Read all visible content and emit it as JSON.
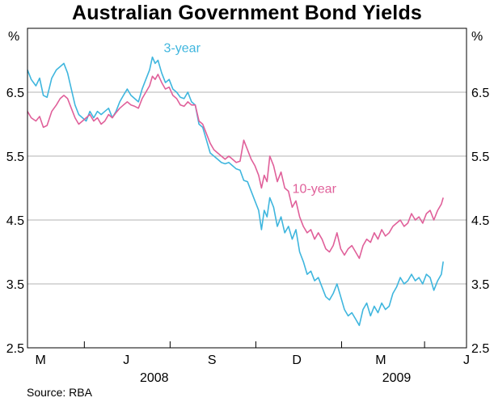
{
  "chart_data": {
    "type": "line",
    "title": "Australian Government Bond Yields",
    "y_unit_left": "%",
    "y_unit_right": "%",
    "ylim": [
      2.5,
      7.5
    ],
    "y_ticks": [
      2.5,
      3.5,
      4.5,
      5.5,
      6.5
    ],
    "grid": true,
    "xlim": [
      "2008-03-01",
      "2009-06-15"
    ],
    "month_ticks": [
      {
        "label": "M",
        "date": "2008-03-15"
      },
      {
        "label": "J",
        "date": "2008-06-15"
      },
      {
        "label": "S",
        "date": "2008-09-15"
      },
      {
        "label": "D",
        "date": "2008-12-15"
      },
      {
        "label": "M",
        "date": "2009-03-15"
      },
      {
        "label": "J",
        "date": "2009-06-15"
      }
    ],
    "year_labels": [
      {
        "label": "2008",
        "date": "2008-07-15"
      },
      {
        "label": "2009",
        "date": "2009-04-01"
      }
    ],
    "series": [
      {
        "name": "3-year",
        "color": "#3fb6de",
        "points": [
          [
            "2008-03-01",
            6.85
          ],
          [
            "2008-03-05",
            6.7
          ],
          [
            "2008-03-10",
            6.6
          ],
          [
            "2008-03-14",
            6.72
          ],
          [
            "2008-03-18",
            6.45
          ],
          [
            "2008-03-22",
            6.42
          ],
          [
            "2008-03-27",
            6.72
          ],
          [
            "2008-04-01",
            6.85
          ],
          [
            "2008-04-05",
            6.9
          ],
          [
            "2008-04-09",
            6.95
          ],
          [
            "2008-04-13",
            6.8
          ],
          [
            "2008-04-17",
            6.55
          ],
          [
            "2008-04-21",
            6.3
          ],
          [
            "2008-04-25",
            6.15
          ],
          [
            "2008-04-29",
            6.1
          ],
          [
            "2008-05-03",
            6.05
          ],
          [
            "2008-05-07",
            6.2
          ],
          [
            "2008-05-11",
            6.1
          ],
          [
            "2008-05-15",
            6.2
          ],
          [
            "2008-05-19",
            6.15
          ],
          [
            "2008-05-23",
            6.2
          ],
          [
            "2008-05-27",
            6.25
          ],
          [
            "2008-05-31",
            6.1
          ],
          [
            "2008-06-04",
            6.2
          ],
          [
            "2008-06-08",
            6.35
          ],
          [
            "2008-06-12",
            6.45
          ],
          [
            "2008-06-16",
            6.55
          ],
          [
            "2008-06-20",
            6.45
          ],
          [
            "2008-06-24",
            6.4
          ],
          [
            "2008-06-28",
            6.35
          ],
          [
            "2008-07-02",
            6.55
          ],
          [
            "2008-07-06",
            6.7
          ],
          [
            "2008-07-10",
            6.85
          ],
          [
            "2008-07-13",
            7.05
          ],
          [
            "2008-07-16",
            6.95
          ],
          [
            "2008-07-19",
            7.0
          ],
          [
            "2008-07-23",
            6.8
          ],
          [
            "2008-07-27",
            6.65
          ],
          [
            "2008-07-31",
            6.7
          ],
          [
            "2008-08-04",
            6.55
          ],
          [
            "2008-08-08",
            6.5
          ],
          [
            "2008-08-12",
            6.42
          ],
          [
            "2008-08-16",
            6.4
          ],
          [
            "2008-08-20",
            6.5
          ],
          [
            "2008-08-24",
            6.35
          ],
          [
            "2008-08-28",
            6.3
          ],
          [
            "2008-09-01",
            6.0
          ],
          [
            "2008-09-05",
            5.95
          ],
          [
            "2008-09-09",
            5.75
          ],
          [
            "2008-09-13",
            5.55
          ],
          [
            "2008-09-17",
            5.5
          ],
          [
            "2008-09-21",
            5.45
          ],
          [
            "2008-09-25",
            5.4
          ],
          [
            "2008-09-29",
            5.38
          ],
          [
            "2008-10-03",
            5.4
          ],
          [
            "2008-10-07",
            5.35
          ],
          [
            "2008-10-11",
            5.3
          ],
          [
            "2008-10-15",
            5.28
          ],
          [
            "2008-10-19",
            5.12
          ],
          [
            "2008-10-23",
            5.1
          ],
          [
            "2008-10-27",
            4.95
          ],
          [
            "2008-10-31",
            4.8
          ],
          [
            "2008-11-04",
            4.65
          ],
          [
            "2008-11-07",
            4.35
          ],
          [
            "2008-11-10",
            4.65
          ],
          [
            "2008-11-13",
            4.55
          ],
          [
            "2008-11-16",
            4.85
          ],
          [
            "2008-11-20",
            4.7
          ],
          [
            "2008-11-24",
            4.4
          ],
          [
            "2008-11-28",
            4.55
          ],
          [
            "2008-12-02",
            4.3
          ],
          [
            "2008-12-06",
            4.4
          ],
          [
            "2008-12-10",
            4.2
          ],
          [
            "2008-12-14",
            4.35
          ],
          [
            "2008-12-18",
            4.0
          ],
          [
            "2008-12-22",
            3.85
          ],
          [
            "2008-12-26",
            3.65
          ],
          [
            "2008-12-30",
            3.7
          ],
          [
            "2009-01-03",
            3.55
          ],
          [
            "2009-01-07",
            3.6
          ],
          [
            "2009-01-11",
            3.45
          ],
          [
            "2009-01-15",
            3.3
          ],
          [
            "2009-01-19",
            3.25
          ],
          [
            "2009-01-23",
            3.35
          ],
          [
            "2009-01-27",
            3.5
          ],
          [
            "2009-01-31",
            3.3
          ],
          [
            "2009-02-04",
            3.1
          ],
          [
            "2009-02-08",
            3.0
          ],
          [
            "2009-02-12",
            3.05
          ],
          [
            "2009-02-16",
            2.95
          ],
          [
            "2009-02-20",
            2.85
          ],
          [
            "2009-02-24",
            3.1
          ],
          [
            "2009-02-28",
            3.2
          ],
          [
            "2009-03-04",
            3.0
          ],
          [
            "2009-03-08",
            3.15
          ],
          [
            "2009-03-12",
            3.05
          ],
          [
            "2009-03-16",
            3.2
          ],
          [
            "2009-03-20",
            3.1
          ],
          [
            "2009-03-24",
            3.15
          ],
          [
            "2009-03-28",
            3.35
          ],
          [
            "2009-04-01",
            3.45
          ],
          [
            "2009-04-05",
            3.6
          ],
          [
            "2009-04-09",
            3.5
          ],
          [
            "2009-04-13",
            3.55
          ],
          [
            "2009-04-17",
            3.65
          ],
          [
            "2009-04-21",
            3.55
          ],
          [
            "2009-04-25",
            3.6
          ],
          [
            "2009-04-29",
            3.5
          ],
          [
            "2009-05-03",
            3.65
          ],
          [
            "2009-05-07",
            3.6
          ],
          [
            "2009-05-11",
            3.4
          ],
          [
            "2009-05-15",
            3.55
          ],
          [
            "2009-05-19",
            3.65
          ],
          [
            "2009-05-21",
            3.85
          ]
        ]
      },
      {
        "name": "10-year",
        "color": "#e0609a",
        "points": [
          [
            "2008-03-01",
            6.2
          ],
          [
            "2008-03-05",
            6.1
          ],
          [
            "2008-03-10",
            6.05
          ],
          [
            "2008-03-14",
            6.12
          ],
          [
            "2008-03-18",
            5.95
          ],
          [
            "2008-03-22",
            5.98
          ],
          [
            "2008-03-27",
            6.2
          ],
          [
            "2008-04-01",
            6.3
          ],
          [
            "2008-04-05",
            6.4
          ],
          [
            "2008-04-09",
            6.45
          ],
          [
            "2008-04-13",
            6.4
          ],
          [
            "2008-04-17",
            6.25
          ],
          [
            "2008-04-21",
            6.1
          ],
          [
            "2008-04-25",
            6.0
          ],
          [
            "2008-04-29",
            6.05
          ],
          [
            "2008-05-03",
            6.1
          ],
          [
            "2008-05-07",
            6.15
          ],
          [
            "2008-05-11",
            6.05
          ],
          [
            "2008-05-15",
            6.1
          ],
          [
            "2008-05-19",
            6.0
          ],
          [
            "2008-05-23",
            6.05
          ],
          [
            "2008-05-27",
            6.15
          ],
          [
            "2008-05-31",
            6.1
          ],
          [
            "2008-06-04",
            6.18
          ],
          [
            "2008-06-08",
            6.25
          ],
          [
            "2008-06-12",
            6.3
          ],
          [
            "2008-06-16",
            6.35
          ],
          [
            "2008-06-20",
            6.3
          ],
          [
            "2008-06-24",
            6.28
          ],
          [
            "2008-06-28",
            6.25
          ],
          [
            "2008-07-02",
            6.4
          ],
          [
            "2008-07-06",
            6.5
          ],
          [
            "2008-07-10",
            6.6
          ],
          [
            "2008-07-13",
            6.75
          ],
          [
            "2008-07-16",
            6.7
          ],
          [
            "2008-07-19",
            6.78
          ],
          [
            "2008-07-23",
            6.65
          ],
          [
            "2008-07-27",
            6.55
          ],
          [
            "2008-07-31",
            6.58
          ],
          [
            "2008-08-04",
            6.45
          ],
          [
            "2008-08-08",
            6.4
          ],
          [
            "2008-08-12",
            6.3
          ],
          [
            "2008-08-16",
            6.28
          ],
          [
            "2008-08-20",
            6.35
          ],
          [
            "2008-08-24",
            6.3
          ],
          [
            "2008-08-28",
            6.3
          ],
          [
            "2008-09-01",
            6.05
          ],
          [
            "2008-09-05",
            6.0
          ],
          [
            "2008-09-09",
            5.85
          ],
          [
            "2008-09-13",
            5.7
          ],
          [
            "2008-09-17",
            5.6
          ],
          [
            "2008-09-21",
            5.55
          ],
          [
            "2008-09-25",
            5.5
          ],
          [
            "2008-09-29",
            5.45
          ],
          [
            "2008-10-03",
            5.5
          ],
          [
            "2008-10-07",
            5.45
          ],
          [
            "2008-10-11",
            5.4
          ],
          [
            "2008-10-15",
            5.42
          ],
          [
            "2008-10-19",
            5.75
          ],
          [
            "2008-10-23",
            5.6
          ],
          [
            "2008-10-27",
            5.45
          ],
          [
            "2008-10-31",
            5.35
          ],
          [
            "2008-11-04",
            5.2
          ],
          [
            "2008-11-07",
            5.0
          ],
          [
            "2008-11-10",
            5.2
          ],
          [
            "2008-11-13",
            5.1
          ],
          [
            "2008-11-16",
            5.5
          ],
          [
            "2008-11-20",
            5.35
          ],
          [
            "2008-11-24",
            5.1
          ],
          [
            "2008-11-28",
            5.25
          ],
          [
            "2008-12-02",
            5.0
          ],
          [
            "2008-12-06",
            4.95
          ],
          [
            "2008-12-10",
            4.7
          ],
          [
            "2008-12-14",
            4.8
          ],
          [
            "2008-12-18",
            4.55
          ],
          [
            "2008-12-22",
            4.4
          ],
          [
            "2008-12-26",
            4.3
          ],
          [
            "2008-12-30",
            4.35
          ],
          [
            "2009-01-03",
            4.2
          ],
          [
            "2009-01-07",
            4.3
          ],
          [
            "2009-01-11",
            4.2
          ],
          [
            "2009-01-15",
            4.05
          ],
          [
            "2009-01-19",
            4.0
          ],
          [
            "2009-01-23",
            4.1
          ],
          [
            "2009-01-27",
            4.3
          ],
          [
            "2009-01-31",
            4.05
          ],
          [
            "2009-02-04",
            3.95
          ],
          [
            "2009-02-08",
            4.05
          ],
          [
            "2009-02-12",
            4.1
          ],
          [
            "2009-02-16",
            4.0
          ],
          [
            "2009-02-20",
            3.9
          ],
          [
            "2009-02-24",
            4.1
          ],
          [
            "2009-02-28",
            4.2
          ],
          [
            "2009-03-04",
            4.15
          ],
          [
            "2009-03-08",
            4.3
          ],
          [
            "2009-03-12",
            4.2
          ],
          [
            "2009-03-16",
            4.35
          ],
          [
            "2009-03-20",
            4.25
          ],
          [
            "2009-03-24",
            4.3
          ],
          [
            "2009-03-28",
            4.4
          ],
          [
            "2009-04-01",
            4.45
          ],
          [
            "2009-04-05",
            4.5
          ],
          [
            "2009-04-09",
            4.4
          ],
          [
            "2009-04-13",
            4.45
          ],
          [
            "2009-04-17",
            4.6
          ],
          [
            "2009-04-21",
            4.5
          ],
          [
            "2009-04-25",
            4.55
          ],
          [
            "2009-04-29",
            4.45
          ],
          [
            "2009-05-03",
            4.6
          ],
          [
            "2009-05-07",
            4.65
          ],
          [
            "2009-05-11",
            4.5
          ],
          [
            "2009-05-15",
            4.65
          ],
          [
            "2009-05-19",
            4.75
          ],
          [
            "2009-05-21",
            4.85
          ]
        ]
      }
    ],
    "annotations": [
      {
        "text": "3-year",
        "series": "3-year",
        "color": "#3fb6de"
      },
      {
        "text": "10-year",
        "series": "10-year",
        "color": "#e0609a"
      }
    ]
  },
  "source": "Source: RBA"
}
